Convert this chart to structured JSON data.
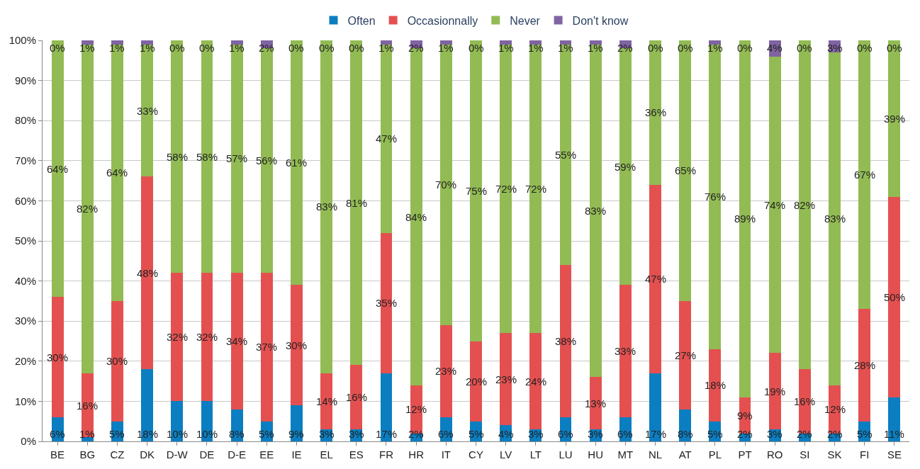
{
  "chart_data": {
    "type": "bar",
    "stacked": true,
    "legend": "top",
    "grid": "y",
    "categories": [
      "BE",
      "BG",
      "CZ",
      "DK",
      "D-W",
      "DE",
      "D-E",
      "EE",
      "IE",
      "EL",
      "ES",
      "FR",
      "HR",
      "IT",
      "CY",
      "LV",
      "LT",
      "LU",
      "HU",
      "MT",
      "NL",
      "AT",
      "PL",
      "PT",
      "RO",
      "SI",
      "SK",
      "FI",
      "SE"
    ],
    "ylim": [
      0,
      100
    ],
    "yticks": [
      {
        "value": 0,
        "label": "0%"
      },
      {
        "value": 10,
        "label": "10%"
      },
      {
        "value": 20,
        "label": "20%"
      },
      {
        "value": 30,
        "label": "30%"
      },
      {
        "value": 40,
        "label": "40%"
      },
      {
        "value": 50,
        "label": "50%"
      },
      {
        "value": 60,
        "label": "60%"
      },
      {
        "value": 70,
        "label": "70%"
      },
      {
        "value": 80,
        "label": "80%"
      },
      {
        "value": 90,
        "label": "90%"
      },
      {
        "value": 100,
        "label": "100%"
      }
    ],
    "series": [
      {
        "name": "Often",
        "color": "#0b7ec1",
        "values": [
          6,
          1,
          5,
          18,
          10,
          10,
          8,
          5,
          9,
          3,
          3,
          17,
          2,
          6,
          5,
          4,
          3,
          6,
          3,
          6,
          17,
          8,
          5,
          2,
          3,
          2,
          2,
          5,
          11
        ],
        "value_labels": [
          "6%",
          "1%",
          "5%",
          "18%",
          "10%",
          "10%",
          "8%",
          "5%",
          "9%",
          "3%",
          "3%",
          "17%",
          "2%",
          "6%",
          "5%",
          "4%",
          "3%",
          "6%",
          "3%",
          "6%",
          "17%",
          "8%",
          "5%",
          "2%",
          "3%",
          "2%",
          "2%",
          "5%",
          "11%"
        ]
      },
      {
        "name": "Occasionnally",
        "color": "#e45050",
        "values": [
          30,
          16,
          30,
          48,
          32,
          32,
          34,
          37,
          30,
          14,
          16,
          35,
          12,
          23,
          20,
          23,
          24,
          38,
          13,
          33,
          47,
          27,
          18,
          9,
          19,
          16,
          12,
          28,
          50
        ],
        "value_labels": [
          "30%",
          "16%",
          "30%",
          "48%",
          "32%",
          "32%",
          "34%",
          "37%",
          "30%",
          "14%",
          "16%",
          "35%",
          "12%",
          "23%",
          "20%",
          "23%",
          "24%",
          "38%",
          "13%",
          "33%",
          "47%",
          "27%",
          "18%",
          "9%",
          "19%",
          "16%",
          "12%",
          "28%",
          "50%"
        ]
      },
      {
        "name": "Never",
        "color": "#92bb54",
        "values": [
          64,
          82,
          64,
          33,
          58,
          58,
          57,
          56,
          61,
          83,
          81,
          47,
          84,
          70,
          75,
          72,
          72,
          55,
          83,
          59,
          36,
          65,
          76,
          89,
          74,
          82,
          83,
          67,
          39
        ],
        "value_labels": [
          "64%",
          "82%",
          "64%",
          "33%",
          "58%",
          "58%",
          "57%",
          "56%",
          "61%",
          "83%",
          "81%",
          "47%",
          "84%",
          "70%",
          "75%",
          "72%",
          "72%",
          "55%",
          "83%",
          "59%",
          "36%",
          "65%",
          "76%",
          "89%",
          "74%",
          "82%",
          "83%",
          "67%",
          "39%"
        ]
      },
      {
        "name": "Don't know",
        "color": "#8064a2",
        "values": [
          0,
          1,
          1,
          1,
          0,
          0,
          1,
          2,
          0,
          0,
          0,
          1,
          2,
          1,
          0,
          1,
          1,
          1,
          1,
          2,
          0,
          0,
          1,
          0,
          4,
          0,
          3,
          0,
          0
        ],
        "value_labels": [
          "0%",
          "1%",
          "1%",
          "1%",
          "0%",
          "0%",
          "1%",
          "2%",
          "0%",
          "0%",
          "0%",
          "1%",
          "2%",
          "1%",
          "0%",
          "1%",
          "1%",
          "1%",
          "1%",
          "2%",
          "0%",
          "0%",
          "1%",
          "0%",
          "4%",
          "0%",
          "3%",
          "0%",
          "0%"
        ]
      }
    ]
  }
}
